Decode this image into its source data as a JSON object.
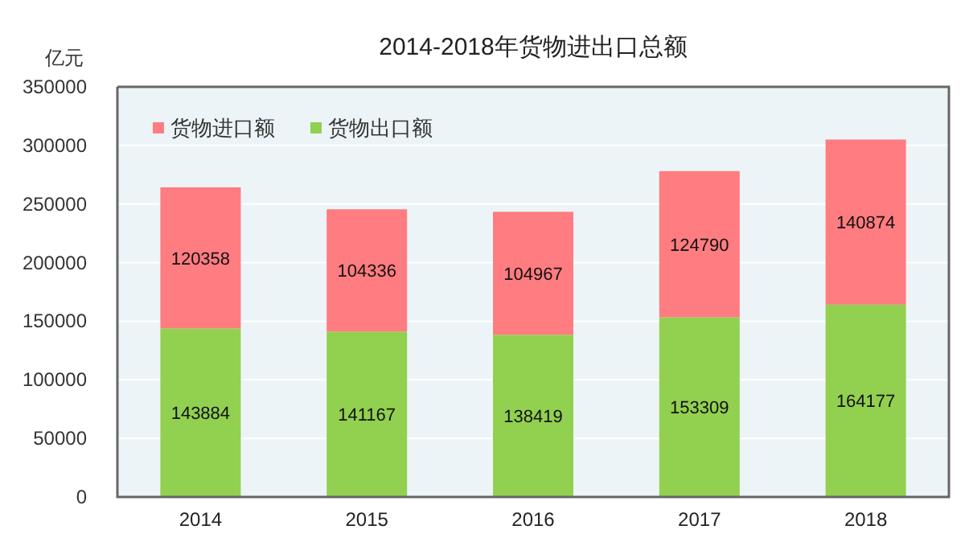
{
  "chart_data": {
    "type": "bar",
    "stacked": true,
    "title": "2014-2018年货物进出口总额",
    "ylabel": "亿元",
    "categories": [
      "2014",
      "2015",
      "2016",
      "2017",
      "2018"
    ],
    "series": [
      {
        "name": "货物出口额",
        "color": "#92d050",
        "values": [
          143884,
          141167,
          138419,
          153309,
          164177
        ]
      },
      {
        "name": "货物进口额",
        "color": "#ff7c80",
        "values": [
          120358,
          104336,
          104967,
          124790,
          140874
        ]
      }
    ],
    "ylim": [
      0,
      350000
    ],
    "yticks": [
      0,
      50000,
      100000,
      150000,
      200000,
      250000,
      300000,
      350000
    ],
    "grid": "y",
    "legend": "top left",
    "data_labels": true
  }
}
